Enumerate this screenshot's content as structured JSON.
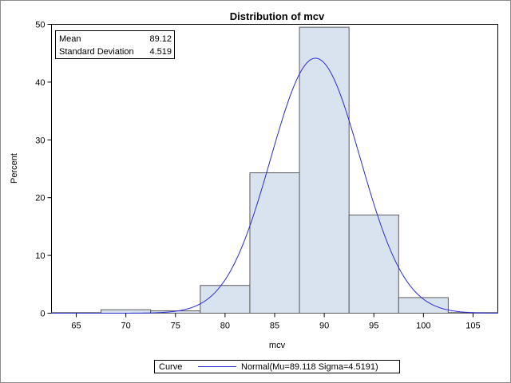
{
  "chart_data": {
    "type": "bar",
    "title": "Distribution of mcv",
    "xlabel": "mcv",
    "ylabel": "Percent",
    "xlim": [
      62.5,
      107.5
    ],
    "ylim": [
      0,
      50
    ],
    "x_ticks": [
      65,
      70,
      75,
      80,
      85,
      90,
      95,
      100,
      105
    ],
    "y_ticks": [
      0,
      10,
      20,
      30,
      40,
      50
    ],
    "bins": [
      {
        "start": 62.5,
        "end": 67.5,
        "value": 0.1
      },
      {
        "start": 67.5,
        "end": 72.5,
        "value": 0.6
      },
      {
        "start": 72.5,
        "end": 77.5,
        "value": 0.4
      },
      {
        "start": 77.5,
        "end": 82.5,
        "value": 4.8
      },
      {
        "start": 82.5,
        "end": 87.5,
        "value": 24.3
      },
      {
        "start": 87.5,
        "end": 92.5,
        "value": 49.5
      },
      {
        "start": 92.5,
        "end": 97.5,
        "value": 17.0
      },
      {
        "start": 97.5,
        "end": 102.5,
        "value": 2.7
      },
      {
        "start": 102.5,
        "end": 107.5,
        "value": 0.1
      }
    ],
    "curve": {
      "type": "normal",
      "mu": 89.118,
      "sigma": 4.5191,
      "bin_width": 5,
      "color": "#2b2bd9"
    },
    "bar_fill": "#d9e3f0",
    "bar_stroke": "#5a5a5a",
    "grid": false,
    "inset": {
      "rows": [
        {
          "label": "Mean",
          "value": "89.12"
        },
        {
          "label": "Standard Deviation",
          "value": "4.519"
        }
      ],
      "placement": "top-left"
    },
    "legend": {
      "heading": "Curve",
      "entries": [
        {
          "label": "Normal(Mu=89.118 Sigma=4.5191)",
          "color": "#2b2bd9"
        }
      ],
      "placement": "bottom"
    }
  }
}
